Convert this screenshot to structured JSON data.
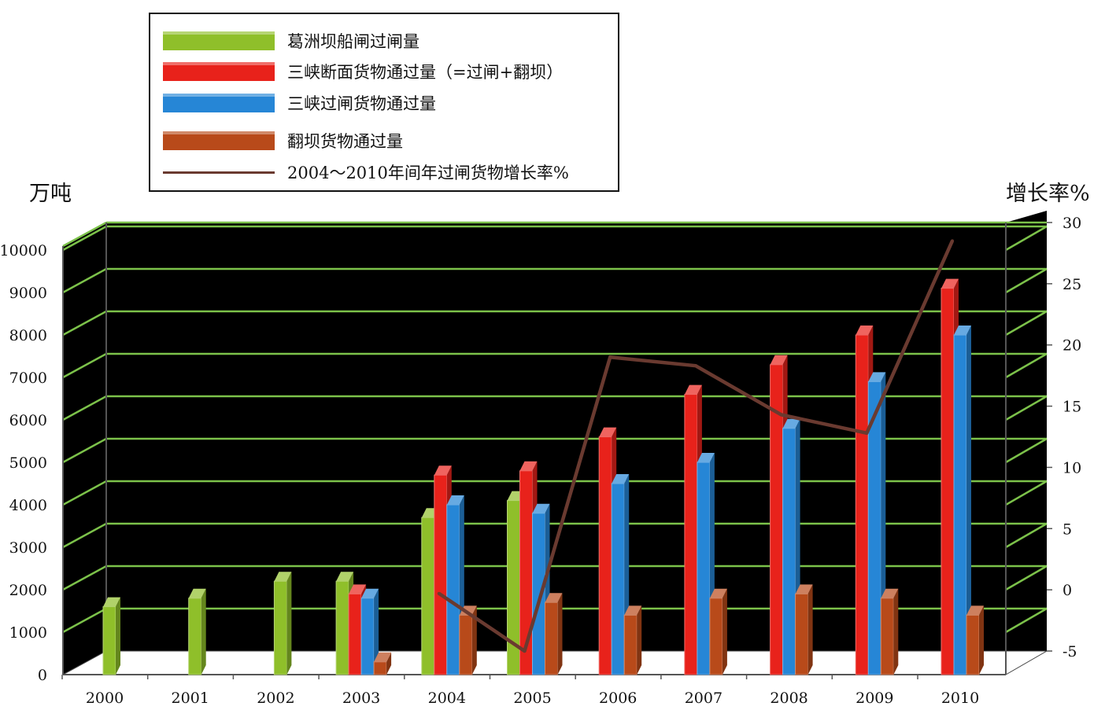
{
  "legend": {
    "items": [
      {
        "label": "葛洲坝船闸过闸量",
        "kind": "bar",
        "color": "#8fbf2a"
      },
      {
        "label": "三峡断面货物通过量（=过闸+翻坝）",
        "kind": "bar",
        "color": "#e8221b"
      },
      {
        "label": "三峡过闸货物通过量",
        "kind": "bar",
        "color": "#2686d6"
      },
      {
        "label": "翻坝货物通过量",
        "kind": "bar",
        "color": "#b84a1a"
      },
      {
        "label": "2004～2010年间年过闸货物增长率%",
        "kind": "line",
        "color": "#6a3a30"
      }
    ]
  },
  "axes": {
    "left_title": "万吨",
    "right_title": "增长率%"
  },
  "chart_data": {
    "type": "bar",
    "categories": [
      "2000",
      "2001",
      "2002",
      "2003",
      "2004",
      "2005",
      "2006",
      "2007",
      "2008",
      "2009",
      "2010"
    ],
    "series": [
      {
        "name": "葛洲坝船闸过闸量",
        "color": "#8fbf2a",
        "values": [
          1600,
          1800,
          2200,
          2200,
          3700,
          4100,
          null,
          null,
          null,
          null,
          null
        ]
      },
      {
        "name": "三峡断面货物通过量（=过闸+翻坝）",
        "color": "#e8221b",
        "values": [
          null,
          null,
          null,
          1900,
          4700,
          4800,
          5600,
          6600,
          7300,
          8000,
          9100
        ]
      },
      {
        "name": "三峡过闸货物通过量",
        "color": "#2686d6",
        "values": [
          null,
          null,
          null,
          1800,
          4000,
          3800,
          4500,
          5000,
          5800,
          6900,
          8000
        ]
      },
      {
        "name": "翻坝货物通过量",
        "color": "#b84a1a",
        "values": [
          null,
          null,
          null,
          300,
          1400,
          1700,
          1400,
          1800,
          1900,
          1800,
          1400
        ]
      }
    ],
    "line_series": {
      "name": "2004～2010年间年过闸货物增长率%",
      "color": "#6a3a30",
      "categories": [
        "2004",
        "2005",
        "2006",
        "2007",
        "2008",
        "2009",
        "2010"
      ],
      "values": [
        -0.3,
        -5,
        19,
        18.3,
        14.3,
        12.8,
        28.5
      ]
    },
    "y_left": {
      "ticks": [
        0,
        1000,
        2000,
        3000,
        4000,
        5000,
        6000,
        7000,
        8000,
        9000,
        10000
      ],
      "lim": [
        0,
        10000
      ]
    },
    "y_right": {
      "ticks": [
        -5,
        0,
        5,
        10,
        15,
        20,
        25,
        30
      ],
      "lim": [
        -5,
        30
      ]
    },
    "background": "#000000",
    "gridline_color": "#7cc24a",
    "grid": true
  }
}
